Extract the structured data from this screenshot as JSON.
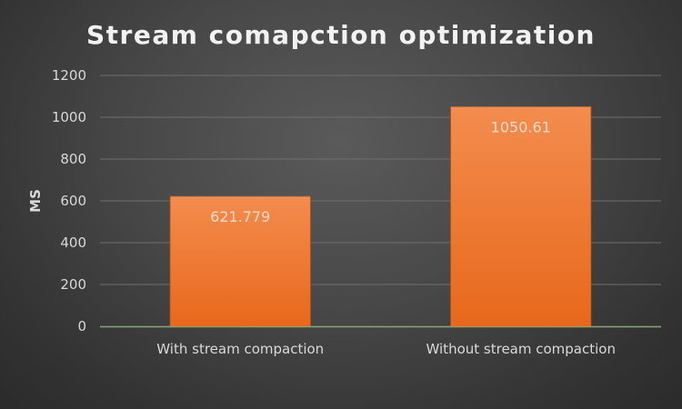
{
  "chart_data": {
    "type": "bar",
    "title": "Stream comapction optimization",
    "xlabel": "",
    "ylabel": "MS",
    "categories": [
      "With stream compaction",
      "Without stream compaction"
    ],
    "values": [
      621.779,
      1050.61
    ],
    "data_labels": [
      "621.779",
      "1050.61"
    ],
    "ylim": [
      0,
      1200
    ],
    "yticks": [
      0,
      200,
      400,
      600,
      800,
      1000,
      1200
    ],
    "ytick_labels": [
      "0",
      "200",
      "400",
      "600",
      "800",
      "1000",
      "1200"
    ],
    "grid": true,
    "legend": "none",
    "colors": {
      "bar_top": "#f38c4e",
      "bar_bottom": "#e8681c",
      "bar_edge": "#c25614",
      "title": "#f2f2f2",
      "axis_text": "#d9d9d9",
      "gridline": "#6e6e6e",
      "baseline": "#86a77a",
      "data_label": "#f5dccb"
    }
  }
}
